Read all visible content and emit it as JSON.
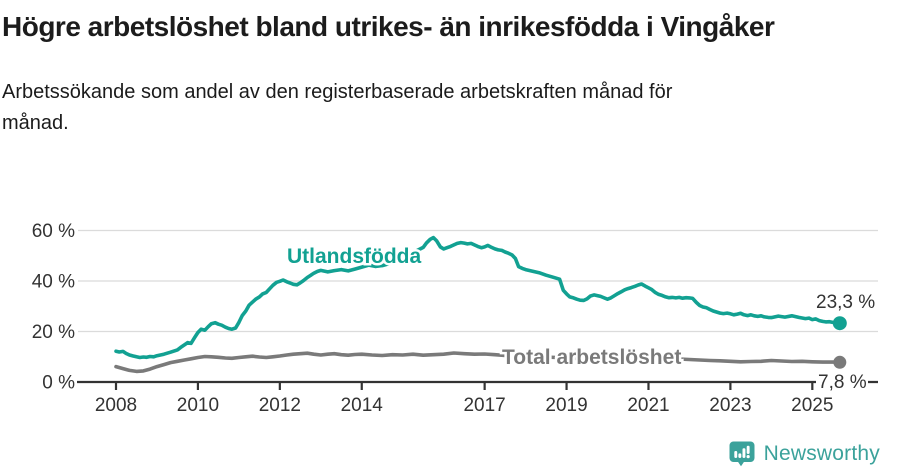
{
  "header": {},
  "footer": {
    "brand": "Newsworthy",
    "brand_color": "#3ba29b",
    "logo_icon": "newsworthy-speech-bubble-bar-chart-icon"
  },
  "chart_data": {
    "type": "line",
    "title": "Högre arbetslöshet bland utrikes- än inrikesfödda i Vingåker",
    "subtitle": "Arbetssökande som andel av den registerbaserade arbetskraften månad för månad.",
    "xlabel": "",
    "ylabel": "",
    "ylim": [
      0,
      60
    ],
    "xlim": [
      2007.9,
      2026.2
    ],
    "grid": true,
    "legend_position": "inline-labels",
    "y_ticks": [
      {
        "value": 0,
        "label": "0 %"
      },
      {
        "value": 20,
        "label": "20 %"
      },
      {
        "value": 40,
        "label": "40 %"
      },
      {
        "value": 60,
        "label": "60 %"
      }
    ],
    "x_ticks": [
      2008,
      2010,
      2012,
      2014,
      2017,
      2019,
      2021,
      2023,
      2025
    ],
    "series": [
      {
        "id": "utlandsfodda",
        "name": "Utlandsfödda",
        "color": "#12a192",
        "end_label": "23,3 %",
        "end_value": 23.3,
        "points": [
          [
            2008.0,
            12.2
          ],
          [
            2008.08,
            11.9
          ],
          [
            2008.17,
            12.1
          ],
          [
            2008.25,
            11.3
          ],
          [
            2008.33,
            10.7
          ],
          [
            2008.42,
            10.3
          ],
          [
            2008.5,
            10.0
          ],
          [
            2008.58,
            9.7
          ],
          [
            2008.67,
            9.9
          ],
          [
            2008.75,
            9.8
          ],
          [
            2008.83,
            10.1
          ],
          [
            2008.92,
            10.0
          ],
          [
            2009.0,
            10.4
          ],
          [
            2009.17,
            11.0
          ],
          [
            2009.33,
            11.8
          ],
          [
            2009.5,
            12.7
          ],
          [
            2009.58,
            13.7
          ],
          [
            2009.67,
            14.7
          ],
          [
            2009.75,
            15.6
          ],
          [
            2009.83,
            15.3
          ],
          [
            2009.92,
            17.6
          ],
          [
            2010.0,
            19.6
          ],
          [
            2010.08,
            20.9
          ],
          [
            2010.17,
            20.5
          ],
          [
            2010.25,
            21.9
          ],
          [
            2010.33,
            23.1
          ],
          [
            2010.42,
            23.5
          ],
          [
            2010.5,
            22.9
          ],
          [
            2010.58,
            22.5
          ],
          [
            2010.67,
            21.7
          ],
          [
            2010.75,
            21.2
          ],
          [
            2010.83,
            20.9
          ],
          [
            2010.92,
            21.4
          ],
          [
            2011.0,
            23.6
          ],
          [
            2011.08,
            26.3
          ],
          [
            2011.17,
            28.1
          ],
          [
            2011.25,
            30.4
          ],
          [
            2011.33,
            31.6
          ],
          [
            2011.42,
            32.9
          ],
          [
            2011.5,
            33.7
          ],
          [
            2011.58,
            34.9
          ],
          [
            2011.67,
            35.5
          ],
          [
            2011.75,
            36.9
          ],
          [
            2011.83,
            38.3
          ],
          [
            2011.92,
            39.5
          ],
          [
            2012.0,
            39.9
          ],
          [
            2012.08,
            40.4
          ],
          [
            2012.17,
            39.7
          ],
          [
            2012.25,
            39.2
          ],
          [
            2012.33,
            38.7
          ],
          [
            2012.42,
            38.5
          ],
          [
            2012.5,
            39.3
          ],
          [
            2012.58,
            40.2
          ],
          [
            2012.67,
            41.4
          ],
          [
            2012.75,
            42.2
          ],
          [
            2012.83,
            43.1
          ],
          [
            2012.92,
            43.8
          ],
          [
            2013.0,
            44.2
          ],
          [
            2013.17,
            43.6
          ],
          [
            2013.33,
            44.1
          ],
          [
            2013.5,
            44.5
          ],
          [
            2013.67,
            44.0
          ],
          [
            2013.83,
            44.7
          ],
          [
            2014.0,
            45.5
          ],
          [
            2014.17,
            46.3
          ],
          [
            2014.33,
            45.8
          ],
          [
            2014.5,
            46.1
          ],
          [
            2014.67,
            46.9
          ],
          [
            2014.83,
            47.7
          ],
          [
            2015.0,
            49.1
          ],
          [
            2015.17,
            50.7
          ],
          [
            2015.33,
            51.9
          ],
          [
            2015.5,
            53.3
          ],
          [
            2015.58,
            55.1
          ],
          [
            2015.67,
            56.5
          ],
          [
            2015.75,
            57.2
          ],
          [
            2015.83,
            55.9
          ],
          [
            2015.92,
            53.5
          ],
          [
            2016.0,
            52.7
          ],
          [
            2016.08,
            53.2
          ],
          [
            2016.17,
            53.7
          ],
          [
            2016.25,
            54.3
          ],
          [
            2016.33,
            54.9
          ],
          [
            2016.42,
            55.2
          ],
          [
            2016.5,
            55.0
          ],
          [
            2016.58,
            54.7
          ],
          [
            2016.67,
            54.9
          ],
          [
            2016.75,
            54.3
          ],
          [
            2016.83,
            53.7
          ],
          [
            2016.92,
            53.2
          ],
          [
            2017.0,
            53.5
          ],
          [
            2017.08,
            54.1
          ],
          [
            2017.17,
            53.3
          ],
          [
            2017.25,
            52.7
          ],
          [
            2017.33,
            52.3
          ],
          [
            2017.42,
            52.1
          ],
          [
            2017.5,
            51.5
          ],
          [
            2017.58,
            51.0
          ],
          [
            2017.67,
            50.3
          ],
          [
            2017.75,
            48.9
          ],
          [
            2017.83,
            45.7
          ],
          [
            2017.92,
            45.0
          ],
          [
            2018.0,
            44.5
          ],
          [
            2018.17,
            43.9
          ],
          [
            2018.33,
            43.3
          ],
          [
            2018.5,
            42.3
          ],
          [
            2018.67,
            41.5
          ],
          [
            2018.83,
            40.7
          ],
          [
            2018.92,
            36.3
          ],
          [
            2019.0,
            34.9
          ],
          [
            2019.08,
            33.7
          ],
          [
            2019.17,
            33.3
          ],
          [
            2019.25,
            32.8
          ],
          [
            2019.33,
            32.4
          ],
          [
            2019.42,
            32.3
          ],
          [
            2019.5,
            32.9
          ],
          [
            2019.58,
            34.0
          ],
          [
            2019.67,
            34.5
          ],
          [
            2019.75,
            34.2
          ],
          [
            2019.83,
            33.9
          ],
          [
            2019.92,
            33.3
          ],
          [
            2020.0,
            32.8
          ],
          [
            2020.08,
            33.3
          ],
          [
            2020.17,
            34.2
          ],
          [
            2020.25,
            35.0
          ],
          [
            2020.33,
            35.7
          ],
          [
            2020.42,
            36.5
          ],
          [
            2020.5,
            37.0
          ],
          [
            2020.58,
            37.4
          ],
          [
            2020.67,
            37.9
          ],
          [
            2020.75,
            38.4
          ],
          [
            2020.83,
            38.8
          ],
          [
            2020.92,
            38.0
          ],
          [
            2021.0,
            37.3
          ],
          [
            2021.08,
            36.6
          ],
          [
            2021.17,
            35.4
          ],
          [
            2021.25,
            34.7
          ],
          [
            2021.33,
            34.3
          ],
          [
            2021.42,
            33.7
          ],
          [
            2021.5,
            33.4
          ],
          [
            2021.58,
            33.5
          ],
          [
            2021.67,
            33.3
          ],
          [
            2021.75,
            33.5
          ],
          [
            2021.83,
            33.2
          ],
          [
            2021.92,
            33.4
          ],
          [
            2022.0,
            33.3
          ],
          [
            2022.08,
            33.1
          ],
          [
            2022.17,
            31.5
          ],
          [
            2022.25,
            30.3
          ],
          [
            2022.33,
            29.7
          ],
          [
            2022.42,
            29.4
          ],
          [
            2022.5,
            28.7
          ],
          [
            2022.58,
            28.1
          ],
          [
            2022.67,
            27.7
          ],
          [
            2022.75,
            27.3
          ],
          [
            2022.83,
            27.1
          ],
          [
            2022.92,
            27.3
          ],
          [
            2023.0,
            27.0
          ],
          [
            2023.08,
            26.6
          ],
          [
            2023.17,
            26.9
          ],
          [
            2023.25,
            27.2
          ],
          [
            2023.33,
            26.6
          ],
          [
            2023.42,
            26.3
          ],
          [
            2023.5,
            26.6
          ],
          [
            2023.58,
            26.2
          ],
          [
            2023.67,
            26.0
          ],
          [
            2023.75,
            26.2
          ],
          [
            2023.83,
            25.8
          ],
          [
            2023.92,
            25.6
          ],
          [
            2024.0,
            25.5
          ],
          [
            2024.17,
            26.1
          ],
          [
            2024.33,
            25.7
          ],
          [
            2024.5,
            26.2
          ],
          [
            2024.67,
            25.6
          ],
          [
            2024.83,
            25.1
          ],
          [
            2024.92,
            25.3
          ],
          [
            2025.0,
            24.7
          ],
          [
            2025.08,
            25.0
          ],
          [
            2025.17,
            24.3
          ],
          [
            2025.25,
            24.0
          ],
          [
            2025.33,
            23.8
          ],
          [
            2025.42,
            23.9
          ],
          [
            2025.5,
            23.6
          ],
          [
            2025.58,
            23.4
          ],
          [
            2025.67,
            23.3
          ]
        ]
      },
      {
        "id": "total",
        "name": "Total arbetslöshet",
        "color": "#7a7a7a",
        "end_label": "7,8 %",
        "end_value": 7.8,
        "points": [
          [
            2008.0,
            6.1
          ],
          [
            2008.17,
            5.3
          ],
          [
            2008.33,
            4.6
          ],
          [
            2008.5,
            4.2
          ],
          [
            2008.67,
            4.4
          ],
          [
            2008.83,
            5.1
          ],
          [
            2009.0,
            6.1
          ],
          [
            2009.17,
            6.9
          ],
          [
            2009.33,
            7.7
          ],
          [
            2009.5,
            8.2
          ],
          [
            2009.67,
            8.7
          ],
          [
            2009.83,
            9.2
          ],
          [
            2010.0,
            9.7
          ],
          [
            2010.17,
            10.1
          ],
          [
            2010.33,
            10.0
          ],
          [
            2010.5,
            9.8
          ],
          [
            2010.67,
            9.5
          ],
          [
            2010.83,
            9.4
          ],
          [
            2011.0,
            9.7
          ],
          [
            2011.17,
            10.0
          ],
          [
            2011.33,
            10.2
          ],
          [
            2011.5,
            9.9
          ],
          [
            2011.67,
            9.7
          ],
          [
            2011.83,
            10.0
          ],
          [
            2012.0,
            10.3
          ],
          [
            2012.17,
            10.7
          ],
          [
            2012.33,
            11.0
          ],
          [
            2012.5,
            11.2
          ],
          [
            2012.67,
            11.4
          ],
          [
            2012.83,
            11.0
          ],
          [
            2013.0,
            10.7
          ],
          [
            2013.17,
            11.0
          ],
          [
            2013.33,
            11.2
          ],
          [
            2013.5,
            10.8
          ],
          [
            2013.67,
            10.6
          ],
          [
            2013.83,
            10.9
          ],
          [
            2014.0,
            11.0
          ],
          [
            2014.25,
            10.7
          ],
          [
            2014.5,
            10.5
          ],
          [
            2014.75,
            10.8
          ],
          [
            2015.0,
            10.7
          ],
          [
            2015.25,
            11.0
          ],
          [
            2015.5,
            10.6
          ],
          [
            2015.75,
            10.8
          ],
          [
            2016.0,
            11.0
          ],
          [
            2016.25,
            11.5
          ],
          [
            2016.5,
            11.2
          ],
          [
            2016.75,
            11.0
          ],
          [
            2017.0,
            11.1
          ],
          [
            2017.25,
            10.8
          ],
          [
            2017.5,
            10.5
          ],
          [
            2017.75,
            10.3
          ],
          [
            2018.0,
            10.5
          ],
          [
            2018.25,
            10.2
          ],
          [
            2018.5,
            9.9
          ],
          [
            2018.75,
            9.7
          ],
          [
            2019.0,
            9.5
          ],
          [
            2019.25,
            9.3
          ],
          [
            2019.5,
            9.2
          ],
          [
            2019.75,
            9.3
          ],
          [
            2020.0,
            9.5
          ],
          [
            2020.25,
            10.0
          ],
          [
            2020.5,
            10.3
          ],
          [
            2020.75,
            10.2
          ],
          [
            2021.0,
            10.0
          ],
          [
            2021.25,
            9.7
          ],
          [
            2021.5,
            9.4
          ],
          [
            2021.75,
            9.1
          ],
          [
            2022.0,
            8.9
          ],
          [
            2022.25,
            8.7
          ],
          [
            2022.5,
            8.5
          ],
          [
            2022.75,
            8.4
          ],
          [
            2023.0,
            8.2
          ],
          [
            2023.25,
            8.0
          ],
          [
            2023.5,
            8.1
          ],
          [
            2023.75,
            8.2
          ],
          [
            2024.0,
            8.5
          ],
          [
            2024.25,
            8.3
          ],
          [
            2024.5,
            8.1
          ],
          [
            2024.75,
            8.2
          ],
          [
            2025.0,
            8.0
          ],
          [
            2025.25,
            7.9
          ],
          [
            2025.5,
            7.9
          ],
          [
            2025.67,
            7.8
          ]
        ]
      }
    ]
  }
}
